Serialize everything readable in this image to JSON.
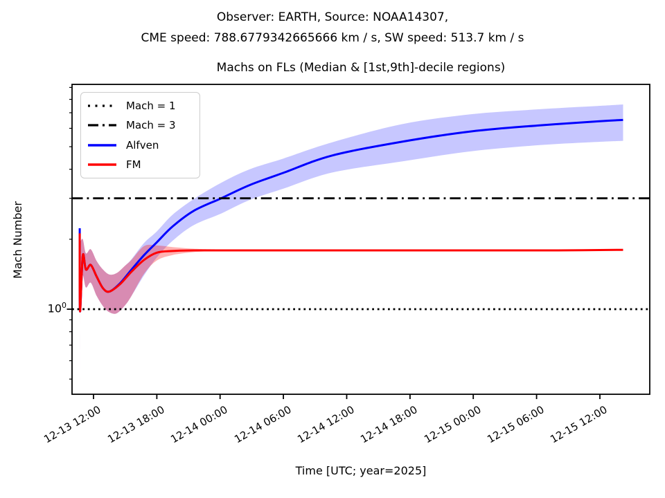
{
  "figure": {
    "suptitle_line1": "Observer: EARTH, Source: NOAA14307,",
    "suptitle_line2": "CME speed: 788.6779342665666 km / s, SW speed: 513.7 km / s"
  },
  "chart_data": {
    "type": "line",
    "title": "Machs on FLs (Median & [1st,9th]-decile regions)",
    "xlabel": "Time [UTC; year=2025]",
    "ylabel": "Mach Number",
    "grid": false,
    "x_axis": {
      "tick_interval_hours": 6,
      "label_rotation_deg": 30,
      "xlim_hours_rel_first_tick": [
        -2.0,
        52.7
      ],
      "ticks": [
        {
          "t": 0,
          "label": "12-13 12:00"
        },
        {
          "t": 6,
          "label": "12-13 18:00"
        },
        {
          "t": 12,
          "label": "12-14 00:00"
        },
        {
          "t": 18,
          "label": "12-14 06:00"
        },
        {
          "t": 24,
          "label": "12-14 12:00"
        },
        {
          "t": 30,
          "label": "12-14 18:00"
        },
        {
          "t": 36,
          "label": "12-15 00:00"
        },
        {
          "t": 42,
          "label": "12-15 06:00"
        },
        {
          "t": 48,
          "label": "12-15 12:00"
        }
      ]
    },
    "y_axis": {
      "scale": "log",
      "ylim": [
        0.43,
        9.3
      ],
      "major_tick": {
        "value": 1,
        "label_base": "10",
        "label_exp": "0"
      },
      "minor_tick_values": [
        0.5,
        0.6,
        0.7,
        0.8,
        0.9,
        2,
        3,
        4,
        5,
        6,
        7,
        8,
        9
      ]
    },
    "reference_lines": [
      {
        "label": "Mach = 1",
        "y": 1,
        "style": "dotted",
        "color": "#000000"
      },
      {
        "label": "Mach = 3",
        "y": 3,
        "style": "dashdot",
        "color": "#000000"
      }
    ],
    "legend": {
      "position": "upper left",
      "entries": [
        {
          "label": "Mach = 1",
          "style": "dotted",
          "color": "#000000"
        },
        {
          "label": "Mach = 3",
          "style": "dashdot",
          "color": "#000000"
        },
        {
          "label": "Alfven",
          "style": "solid",
          "color": "#0000ff"
        },
        {
          "label": "FM",
          "style": "solid",
          "color": "#ff0000"
        }
      ]
    },
    "series": [
      {
        "name": "Alfven",
        "color": "#0000ff",
        "band_opacity": 0.22,
        "points": [
          [
            -1.31,
            2.23
          ],
          [
            -1.28,
            0.98
          ],
          [
            -1.02,
            1.7
          ],
          [
            -0.72,
            1.48
          ],
          [
            -0.26,
            1.55
          ],
          [
            0.3,
            1.38
          ],
          [
            0.9,
            1.23
          ],
          [
            1.5,
            1.19
          ],
          [
            2.5,
            1.29
          ],
          [
            3.6,
            1.48
          ],
          [
            4.8,
            1.71
          ],
          [
            6.0,
            1.94
          ],
          [
            7.5,
            2.27
          ],
          [
            9.5,
            2.65
          ],
          [
            12.1,
            3.0
          ],
          [
            14.8,
            3.42
          ],
          [
            18.0,
            3.86
          ],
          [
            22.6,
            4.58
          ],
          [
            29.2,
            5.25
          ],
          [
            35.8,
            5.82
          ],
          [
            42.3,
            6.18
          ],
          [
            48.0,
            6.44
          ],
          [
            50.2,
            6.52
          ]
        ],
        "band": [
          [
            -1.31,
            0.5,
            2.2
          ],
          [
            -1.27,
            1.26,
            1.96
          ],
          [
            -1.02,
            1.4,
            2.0
          ],
          [
            -0.72,
            1.24,
            1.74
          ],
          [
            -0.26,
            1.3,
            1.81
          ],
          [
            0.3,
            1.14,
            1.61
          ],
          [
            0.9,
            1.03,
            1.48
          ],
          [
            1.5,
            0.97,
            1.41
          ],
          [
            2.2,
            0.96,
            1.43
          ],
          [
            3.0,
            1.04,
            1.54
          ],
          [
            3.6,
            1.14,
            1.64
          ],
          [
            4.8,
            1.4,
            1.93
          ],
          [
            6.0,
            1.67,
            2.16
          ],
          [
            7.5,
            1.97,
            2.55
          ],
          [
            9.5,
            2.3,
            2.98
          ],
          [
            12.1,
            2.58,
            3.5
          ],
          [
            14.8,
            2.95,
            4.0
          ],
          [
            18.0,
            3.3,
            4.45
          ],
          [
            22.6,
            3.87,
            5.22
          ],
          [
            29.2,
            4.32,
            6.25
          ],
          [
            35.8,
            4.78,
            6.9
          ],
          [
            42.3,
            5.08,
            7.25
          ],
          [
            48.0,
            5.25,
            7.5
          ],
          [
            50.2,
            5.3,
            7.6
          ]
        ]
      },
      {
        "name": "FM",
        "color": "#ff0000",
        "band_opacity": 0.3,
        "points": [
          [
            -1.31,
            2.12
          ],
          [
            -1.28,
            0.98
          ],
          [
            -1.02,
            1.7
          ],
          [
            -0.72,
            1.48
          ],
          [
            -0.26,
            1.55
          ],
          [
            0.3,
            1.38
          ],
          [
            0.9,
            1.23
          ],
          [
            1.5,
            1.19
          ],
          [
            2.5,
            1.28
          ],
          [
            3.6,
            1.45
          ],
          [
            4.8,
            1.63
          ],
          [
            6.0,
            1.75
          ],
          [
            7.5,
            1.78
          ],
          [
            9.5,
            1.79
          ],
          [
            14,
            1.79
          ],
          [
            20,
            1.79
          ],
          [
            26,
            1.79
          ],
          [
            32,
            1.79
          ],
          [
            38,
            1.79
          ],
          [
            44,
            1.79
          ],
          [
            50.2,
            1.8
          ]
        ],
        "band": [
          [
            -1.31,
            0.49,
            2.1
          ],
          [
            -1.27,
            1.26,
            1.96
          ],
          [
            -1.02,
            1.4,
            2.0
          ],
          [
            -0.72,
            1.24,
            1.74
          ],
          [
            -0.26,
            1.3,
            1.81
          ],
          [
            0.3,
            1.14,
            1.61
          ],
          [
            0.9,
            1.03,
            1.48
          ],
          [
            1.5,
            0.97,
            1.41
          ],
          [
            2.2,
            0.96,
            1.43
          ],
          [
            3.0,
            1.04,
            1.54
          ],
          [
            3.6,
            1.14,
            1.63
          ],
          [
            4.8,
            1.42,
            1.87
          ],
          [
            6.0,
            1.62,
            1.88
          ],
          [
            7.5,
            1.71,
            1.85
          ],
          [
            9.5,
            1.76,
            1.82
          ],
          [
            11.5,
            1.78,
            1.81
          ]
        ]
      }
    ]
  }
}
